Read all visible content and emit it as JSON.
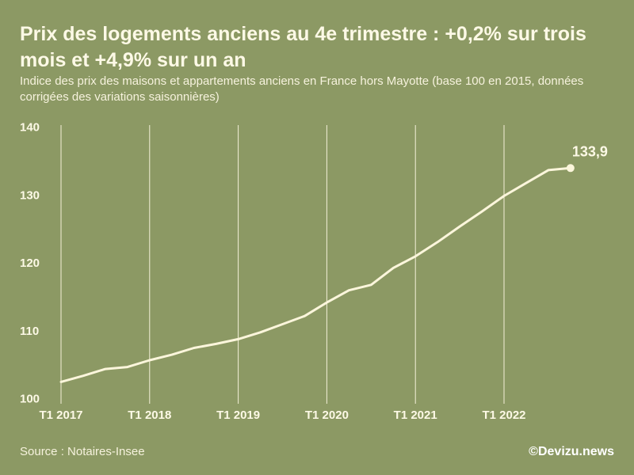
{
  "chart_data": {
    "type": "line",
    "title": "Prix des logements anciens au 4e trimestre : +0,2% sur trois mois et +4,9% sur un an",
    "subtitle": "Indice des prix des maisons et appartements anciens en France hors Mayotte (base 100 en 2015, données corrigées des variations saisonnières)",
    "xlabel": "",
    "ylabel": "",
    "x": [
      "T1 2017",
      "T2 2017",
      "T3 2017",
      "T4 2017",
      "T1 2018",
      "T2 2018",
      "T3 2018",
      "T4 2018",
      "T1 2019",
      "T2 2019",
      "T3 2019",
      "T4 2019",
      "T1 2020",
      "T2 2020",
      "T3 2020",
      "T4 2020",
      "T1 2021",
      "T2 2021",
      "T3 2021",
      "T4 2021",
      "T1 2022",
      "T2 2022",
      "T3 2022",
      "T4 2022"
    ],
    "values": [
      102.4,
      103.3,
      104.3,
      104.6,
      105.6,
      106.4,
      107.4,
      108.0,
      108.7,
      109.7,
      110.9,
      112.1,
      114.1,
      115.9,
      116.7,
      119.2,
      120.9,
      123.0,
      125.3,
      127.5,
      129.8,
      131.7,
      133.6,
      133.9
    ],
    "x_tick_labels": [
      "T1 2017",
      "T1 2018",
      "T1 2019",
      "T1 2020",
      "T1 2021",
      "T1 2022"
    ],
    "ylim": [
      100,
      140
    ],
    "y_ticks": [
      100,
      110,
      120,
      130,
      140
    ],
    "data_labels": [
      {
        "x": "T4 2022",
        "text": "133,9"
      }
    ],
    "grid": "vertical",
    "legend": "none"
  },
  "footer": {
    "source": "Source : Notaires-Insee",
    "credit": "©Devizu.news"
  },
  "colors": {
    "background": "#8c9964",
    "text": "#fdf9e6",
    "line": "#fcf6dc"
  }
}
